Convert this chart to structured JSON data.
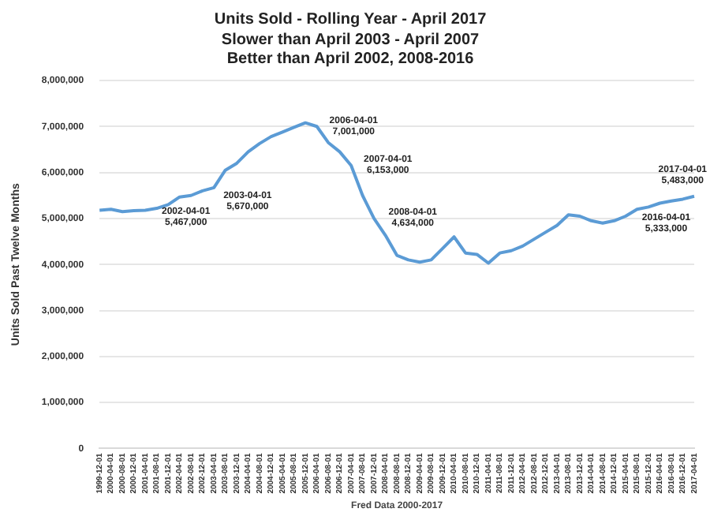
{
  "chart_data": {
    "type": "line",
    "title": "Units Sold - Rolling Year - April 2017",
    "subtitle": "Slower than April 2003 - April 2007\nBetter than April 2002, 2008-2016",
    "xlabel": "Fred Data 2000-2017",
    "ylabel": "Units Sold Past Twelve Months",
    "categories": [
      "1999-12-01",
      "2000-04-01",
      "2000-08-01",
      "2000-12-01",
      "2001-04-01",
      "2001-08-01",
      "2001-12-01",
      "2002-04-01",
      "2002-08-01",
      "2002-12-01",
      "2003-04-01",
      "2003-08-01",
      "2003-12-01",
      "2004-04-01",
      "2004-08-01",
      "2004-12-01",
      "2005-04-01",
      "2005-08-01",
      "2005-12-01",
      "2006-04-01",
      "2006-08-01",
      "2006-12-01",
      "2007-04-01",
      "2007-08-01",
      "2007-12-01",
      "2008-04-01",
      "2008-08-01",
      "2008-12-01",
      "2009-04-01",
      "2009-08-01",
      "2009-12-01",
      "2010-04-01",
      "2010-08-01",
      "2010-12-01",
      "2011-04-01",
      "2011-08-01",
      "2011-12-01",
      "2012-04-01",
      "2012-08-01",
      "2012-12-01",
      "2013-04-01",
      "2013-08-01",
      "2013-12-01",
      "2014-04-01",
      "2014-08-01",
      "2014-12-01",
      "2015-04-01",
      "2015-08-01",
      "2015-12-01",
      "2016-04-01",
      "2016-08-01",
      "2016-12-01",
      "2017-04-01"
    ],
    "series": [
      {
        "color": "#5b9bd5",
        "values": [
          5180000,
          5200000,
          5150000,
          5170000,
          5180000,
          5220000,
          5300000,
          5467000,
          5500000,
          5600000,
          5670000,
          6050000,
          6200000,
          6450000,
          6630000,
          6780000,
          6880000,
          6980000,
          7080000,
          7001000,
          6650000,
          6450000,
          6153000,
          5500000,
          5000000,
          4634000,
          4200000,
          4100000,
          4050000,
          4100000,
          4350000,
          4600000,
          4250000,
          4220000,
          4030000,
          4250000,
          4300000,
          4400000,
          4550000,
          4700000,
          4850000,
          5080000,
          5050000,
          4950000,
          4900000,
          4950000,
          5050000,
          5200000,
          5250000,
          5333000,
          5380000,
          5420000,
          5483000
        ]
      }
    ],
    "ylim": [
      0,
      8000000
    ],
    "yticks": [
      {
        "value": 0,
        "label": "0"
      },
      {
        "value": 1000000,
        "label": "1,000,000"
      },
      {
        "value": 2000000,
        "label": "2,000,000"
      },
      {
        "value": 3000000,
        "label": "3,000,000"
      },
      {
        "value": 4000000,
        "label": "4,000,000"
      },
      {
        "value": 5000000,
        "label": "5,000,000"
      },
      {
        "value": 6000000,
        "label": "6,000,000"
      },
      {
        "value": 7000000,
        "label": "7,000,000"
      },
      {
        "value": 8000000,
        "label": "8,000,000"
      }
    ],
    "grid": "y",
    "legend": false,
    "marker": "none",
    "line_style": "solid",
    "annotations": [
      {
        "text": "2002-04-01\n5,467,000",
        "x": "2002-04-01",
        "y": 5467000
      },
      {
        "text": "2003-04-01\n5,670,000",
        "x": "2003-04-01",
        "y": 5670000
      },
      {
        "text": "2006-04-01\n7,001,000",
        "x": "2006-04-01",
        "y": 7001000
      },
      {
        "text": "2007-04-01\n6,153,000",
        "x": "2007-04-01",
        "y": 6153000
      },
      {
        "text": "2008-04-01\n4,634,000",
        "x": "2008-04-01",
        "y": 4634000
      },
      {
        "text": "2016-04-01\n5,333,000",
        "x": "2016-04-01",
        "y": 5333000
      },
      {
        "text": "2017-04-01\n5,483,000",
        "x": "2017-04-01",
        "y": 5483000
      }
    ]
  }
}
